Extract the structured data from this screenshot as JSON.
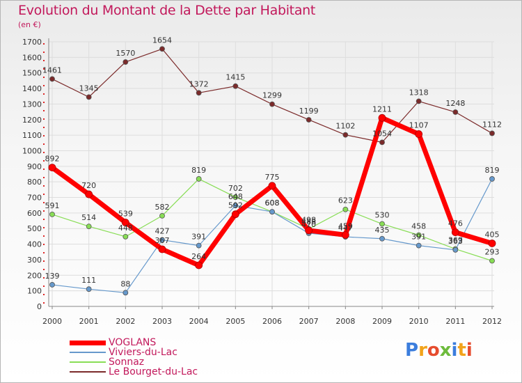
{
  "title": "Evolution du Montant de la Dette par Habitant",
  "unit": "(en €)",
  "logo": "Proxiti",
  "chart_data": {
    "type": "line",
    "title": "Evolution du Montant de la Dette par Habitant",
    "ylabel": "(en €)",
    "x": [
      2000,
      2001,
      2002,
      2003,
      2004,
      2005,
      2006,
      2007,
      2008,
      2009,
      2010,
      2011,
      2012
    ],
    "ylim": [
      0,
      1700
    ],
    "yticks": [
      0,
      100,
      200,
      300,
      400,
      500,
      600,
      700,
      800,
      900,
      1000,
      1100,
      1200,
      1300,
      1400,
      1500,
      1600,
      1700
    ],
    "grid": true,
    "legend": "bottom-left",
    "series": [
      {
        "name": "VOGLANS",
        "color": "#ff0000",
        "values": [
          892,
          720,
          539,
          367,
          264,
          592,
          775,
          488,
          459,
          1211,
          1107,
          476,
          405
        ]
      },
      {
        "name": "Viviers-du-Lac",
        "color": "#6699cc",
        "values": [
          139,
          111,
          88,
          427,
          391,
          648,
          608,
          470,
          447,
          435,
          391,
          363,
          819
        ]
      },
      {
        "name": "Sonnaz",
        "color": "#88dd55",
        "values": [
          591,
          514,
          448,
          582,
          819,
          702,
          608,
          498,
          623,
          530,
          458,
          369,
          293
        ]
      },
      {
        "name": "Le Bourget-du-Lac",
        "color": "#7b2a2a",
        "values": [
          1461,
          1345,
          1570,
          1654,
          1372,
          1415,
          1299,
          1199,
          1102,
          1054,
          1318,
          1248,
          1112
        ]
      }
    ]
  }
}
